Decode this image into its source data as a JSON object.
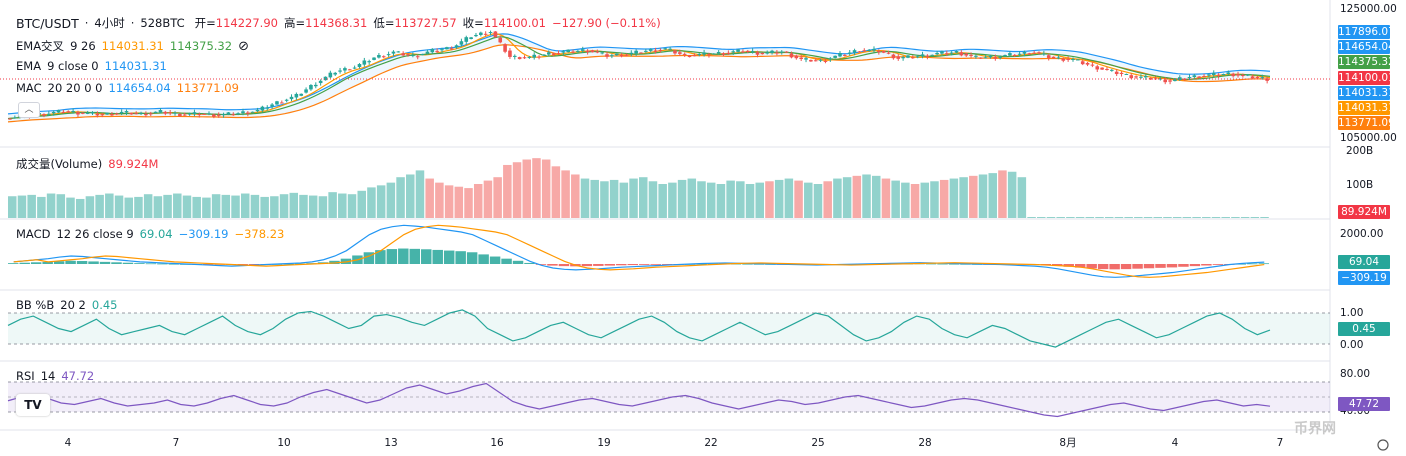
{
  "header": {
    "symbol": "BTC/USDT",
    "sep1": "·",
    "interval": "4小时",
    "sep2": "·",
    "source": "528BTC",
    "open_label": "开=",
    "open": "114227.90",
    "high_label": "高=",
    "high": "114368.31",
    "low_label": "低=",
    "low": "113727.57",
    "close_label": "收=",
    "close": "114100.01",
    "change": "−127.90 (−0.11%)"
  },
  "indicators": {
    "ema_cross": {
      "name": "EMA交叉",
      "params": "9 26",
      "v1": "114031.31",
      "v2": "114375.32",
      "icon": "hidden-eye-icon"
    },
    "ema": {
      "name": "EMA",
      "params": "9 close 0",
      "v1": "114031.31"
    },
    "mac": {
      "name": "MAC",
      "params": "20 20 0 0",
      "v1": "114654.04",
      "v2": "113771.09"
    },
    "volume": {
      "name": "成交量(Volume)",
      "v1": "89.924M"
    },
    "macd": {
      "name": "MACD",
      "params": "12 26 close 9",
      "v1": "69.04",
      "v2": "−309.19",
      "v3": "−378.23"
    },
    "bb": {
      "name": "BB %B",
      "params": "20 2",
      "v1": "0.45"
    },
    "rsi": {
      "name": "RSI",
      "params": "14",
      "v1": "47.72"
    }
  },
  "price_axis": {
    "ticks": [
      "125000.00",
      "105000.00"
    ],
    "badges": [
      {
        "text": "117896.07",
        "color": "#2196f3"
      },
      {
        "text": "114654.04",
        "color": "#2196f3"
      },
      {
        "text": "114375.32",
        "color": "#43a047"
      },
      {
        "text": "114100.01",
        "color": "#f23645"
      },
      {
        "text": "114031.31",
        "color": "#2196f3"
      },
      {
        "text": "114031.31",
        "color": "#ff9800"
      },
      {
        "text": "113771.09",
        "color": "#ff7f0e"
      }
    ]
  },
  "volume_axis": {
    "ticks": [
      "200B",
      "100B"
    ],
    "badge": "89.924M"
  },
  "macd_axis": {
    "ticks": [
      "2000.00"
    ],
    "badges": [
      "69.04",
      "−309.19"
    ]
  },
  "bb_axis": {
    "ticks": [
      "1.00",
      "0.00"
    ],
    "badge": "0.45"
  },
  "rsi_axis": {
    "ticks": [
      "80.00",
      "40.00"
    ],
    "badge": "47.72"
  },
  "x_axis": {
    "labels": [
      "4",
      "7",
      "10",
      "13",
      "16",
      "19",
      "22",
      "25",
      "28",
      "8月",
      "4",
      "7"
    ]
  },
  "watermark": "币界网",
  "chart_data": {
    "type": "candlestick",
    "price_range": [
      105000,
      125000
    ],
    "last_price": 114100.01,
    "colors": {
      "up": "#26a69a",
      "down": "#ef5350",
      "ema_cross_fast": "#ff9800",
      "ema_cross_slow": "#43a047",
      "ema": "#2196f3",
      "mac_upper": "#2196f3",
      "mac_lower": "#ff7f0e",
      "macd_line": "#2196f3",
      "signal_line": "#ff9800",
      "bb": "#26a69a",
      "rsi": "#7e57c2"
    },
    "price_path": [
      [
        0,
        108200
      ],
      [
        4,
        108700
      ],
      [
        8,
        108900
      ],
      [
        12,
        109300
      ],
      [
        16,
        109000
      ],
      [
        20,
        108800
      ],
      [
        24,
        109100
      ],
      [
        28,
        108900
      ],
      [
        32,
        109200
      ],
      [
        36,
        108800
      ],
      [
        40,
        108900
      ],
      [
        44,
        108700
      ],
      [
        48,
        109000
      ],
      [
        52,
        109400
      ],
      [
        56,
        110600
      ],
      [
        60,
        111600
      ],
      [
        64,
        113500
      ],
      [
        68,
        115200
      ],
      [
        72,
        115900
      ],
      [
        76,
        117300
      ],
      [
        80,
        118100
      ],
      [
        84,
        117500
      ],
      [
        88,
        118300
      ],
      [
        92,
        118800
      ],
      [
        96,
        120500
      ],
      [
        100,
        121200
      ],
      [
        104,
        117400
      ],
      [
        108,
        117300
      ],
      [
        112,
        117900
      ],
      [
        116,
        118200
      ],
      [
        120,
        118400
      ],
      [
        124,
        117600
      ],
      [
        128,
        117800
      ],
      [
        132,
        118300
      ],
      [
        136,
        118600
      ],
      [
        140,
        117600
      ],
      [
        144,
        117800
      ],
      [
        148,
        118000
      ],
      [
        152,
        118300
      ],
      [
        156,
        117900
      ],
      [
        160,
        118200
      ],
      [
        164,
        117000
      ],
      [
        168,
        116800
      ],
      [
        172,
        117700
      ],
      [
        176,
        118400
      ],
      [
        180,
        118300
      ],
      [
        184,
        117200
      ],
      [
        188,
        117500
      ],
      [
        192,
        117900
      ],
      [
        196,
        118100
      ],
      [
        200,
        117300
      ],
      [
        204,
        117400
      ],
      [
        208,
        117800
      ],
      [
        212,
        118100
      ],
      [
        216,
        117200
      ],
      [
        220,
        117000
      ],
      [
        224,
        116000
      ],
      [
        228,
        115200
      ],
      [
        232,
        114500
      ],
      [
        236,
        114200
      ],
      [
        240,
        113800
      ],
      [
        244,
        114400
      ],
      [
        248,
        114700
      ],
      [
        252,
        114900
      ],
      [
        256,
        114500
      ],
      [
        260,
        114100
      ]
    ],
    "volume_series": [
      32,
      33,
      34,
      31,
      36,
      35,
      30,
      28,
      32,
      34,
      36,
      33,
      30,
      31,
      35,
      32,
      34,
      36,
      33,
      31,
      30,
      35,
      34,
      33,
      36,
      34,
      31,
      32,
      35,
      37,
      34,
      33,
      32,
      38,
      36,
      35,
      40,
      45,
      48,
      52,
      60,
      64,
      70,
      58,
      52,
      48,
      46,
      44,
      50,
      55,
      60,
      78,
      82,
      86,
      88,
      86,
      76,
      70,
      64,
      58,
      56,
      54,
      56,
      52,
      58,
      60,
      54,
      50,
      52,
      56,
      58,
      54,
      52,
      50,
      55,
      54,
      50,
      52,
      54,
      56,
      58,
      55,
      52,
      50,
      54,
      58,
      60,
      62,
      64,
      62,
      58,
      55,
      52,
      50,
      52,
      54,
      56,
      58,
      60,
      62,
      64,
      66,
      70,
      68,
      60,
      0,
      0,
      0,
      0,
      0,
      0,
      0,
      0,
      0,
      0,
      0,
      0,
      0,
      0,
      0,
      0,
      0,
      0,
      0,
      0,
      0,
      0,
      0,
      0,
      0
    ],
    "macd_series": [
      80,
      120,
      160,
      200,
      260,
      300,
      280,
      240,
      200,
      160,
      120,
      80,
      60,
      40,
      20,
      0,
      -20,
      -40,
      -60,
      -80,
      -60,
      -40,
      -20,
      0,
      20,
      40,
      80,
      160,
      300,
      500,
      800,
      1100,
      1300,
      1400,
      1450,
      1420,
      1380,
      1320,
      1260,
      1200,
      1100,
      900,
      700,
      500,
      300,
      100,
      -50,
      -150,
      -200,
      -220,
      -200,
      -180,
      -150,
      -120,
      -100,
      -80,
      -60,
      -40,
      -20,
      0,
      20,
      30,
      40,
      30,
      20,
      10,
      0,
      -10,
      -20,
      -30,
      -40,
      -30,
      -20,
      -10,
      0,
      10,
      20,
      30,
      40,
      50,
      40,
      30,
      20,
      10,
      0,
      -10,
      -20,
      -40,
      -60,
      -80,
      -120,
      -180,
      -260,
      -340,
      -420,
      -480,
      -500,
      -480,
      -440,
      -400,
      -360,
      -320,
      -260,
      -200,
      -140,
      -80,
      -20,
      20,
      50,
      69
    ],
    "bb_series": [
      0.6,
      0.8,
      0.9,
      0.7,
      0.5,
      0.4,
      0.6,
      0.8,
      0.5,
      0.3,
      0.4,
      0.5,
      0.6,
      0.4,
      0.3,
      0.5,
      0.7,
      0.9,
      0.6,
      0.4,
      0.3,
      0.5,
      0.8,
      1.0,
      1.05,
      0.9,
      0.7,
      0.5,
      0.6,
      0.9,
      0.95,
      0.85,
      0.7,
      0.6,
      0.8,
      1.0,
      1.1,
      0.9,
      0.5,
      0.3,
      0.1,
      0.2,
      0.4,
      0.6,
      0.7,
      0.5,
      0.3,
      0.2,
      0.4,
      0.6,
      0.8,
      0.9,
      0.7,
      0.4,
      0.2,
      0.1,
      0.3,
      0.5,
      0.7,
      0.5,
      0.3,
      0.4,
      0.6,
      0.8,
      1.0,
      0.9,
      0.6,
      0.3,
      0.1,
      0.2,
      0.4,
      0.7,
      0.9,
      0.8,
      0.5,
      0.3,
      0.2,
      0.4,
      0.6,
      0.5,
      0.3,
      0.1,
      0.0,
      -0.1,
      0.1,
      0.3,
      0.5,
      0.7,
      0.8,
      0.6,
      0.4,
      0.2,
      0.3,
      0.5,
      0.7,
      0.9,
      1.0,
      0.8,
      0.5,
      0.3,
      0.45
    ],
    "rsi_series": [
      55,
      60,
      62,
      58,
      52,
      50,
      54,
      58,
      52,
      48,
      50,
      52,
      56,
      50,
      48,
      52,
      58,
      62,
      56,
      50,
      48,
      52,
      60,
      66,
      70,
      64,
      58,
      52,
      56,
      64,
      72,
      76,
      70,
      64,
      68,
      74,
      78,
      66,
      54,
      48,
      44,
      48,
      52,
      56,
      58,
      54,
      50,
      48,
      52,
      56,
      60,
      62,
      58,
      52,
      48,
      44,
      48,
      52,
      56,
      54,
      50,
      52,
      56,
      60,
      62,
      58,
      54,
      50,
      46,
      48,
      52,
      56,
      58,
      56,
      52,
      48,
      44,
      40,
      36,
      34,
      38,
      42,
      46,
      50,
      52,
      48,
      44,
      42,
      46,
      50,
      54,
      56,
      52,
      48,
      50,
      47.72
    ]
  }
}
